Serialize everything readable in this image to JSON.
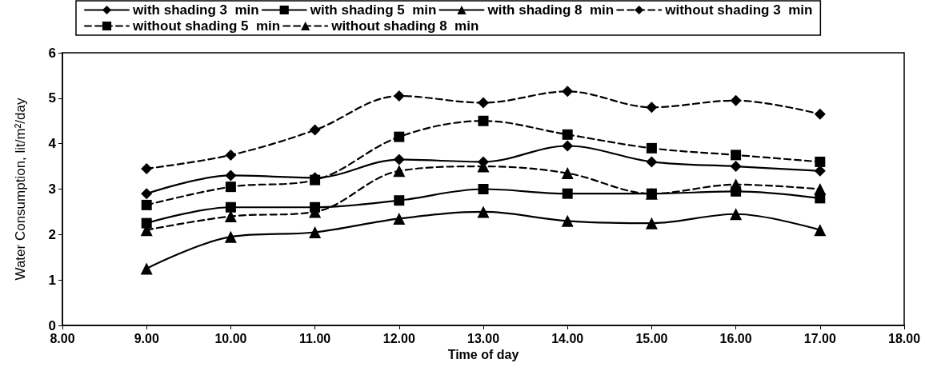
{
  "chart_data": {
    "type": "line",
    "xlabel": "Time of day",
    "ylabel": "Water Consumption, lit/m²/day",
    "x": [
      9,
      10,
      11,
      12,
      13,
      14,
      15,
      16,
      17
    ],
    "xlim": [
      8,
      18
    ],
    "xticks": [
      {
        "value": 8,
        "label": "8.00"
      },
      {
        "value": 9,
        "label": "9.00"
      },
      {
        "value": 10,
        "label": "10.00"
      },
      {
        "value": 11,
        "label": "11.00"
      },
      {
        "value": 12,
        "label": "12.00"
      },
      {
        "value": 13,
        "label": "13.00"
      },
      {
        "value": 14,
        "label": "14.00"
      },
      {
        "value": 15,
        "label": "15.00"
      },
      {
        "value": 16,
        "label": "16.00"
      },
      {
        "value": 17,
        "label": "17.00"
      },
      {
        "value": 18,
        "label": "18.00"
      }
    ],
    "ylim": [
      0,
      6
    ],
    "yticks": [
      0,
      1,
      2,
      3,
      4,
      5,
      6
    ],
    "grid": false,
    "legend": "top",
    "series": [
      {
        "name": "with shading 3  min",
        "color": "#000000",
        "marker": "diamond",
        "line_style": "solid",
        "values": [
          2.9,
          3.3,
          3.25,
          3.65,
          3.6,
          3.95,
          3.6,
          3.5,
          3.4
        ]
      },
      {
        "name": "with shading 5  min",
        "color": "#000000",
        "marker": "square",
        "line_style": "solid",
        "values": [
          2.25,
          2.6,
          2.6,
          2.75,
          3.0,
          2.9,
          2.9,
          2.95,
          2.8
        ]
      },
      {
        "name": "with shading 8  min",
        "color": "#000000",
        "marker": "triangle",
        "line_style": "solid",
        "values": [
          1.25,
          1.95,
          2.05,
          2.35,
          2.5,
          2.3,
          2.25,
          2.45,
          2.1
        ]
      },
      {
        "name": "without shading 3  min",
        "color": "#000000",
        "marker": "diamond",
        "line_style": "dashed",
        "values": [
          3.45,
          3.75,
          4.3,
          5.05,
          4.9,
          5.15,
          4.8,
          4.95,
          4.65
        ]
      },
      {
        "name": "without shading 5  min",
        "color": "#000000",
        "marker": "square",
        "line_style": "dashed",
        "values": [
          2.65,
          3.05,
          3.2,
          4.15,
          4.5,
          4.2,
          3.9,
          3.75,
          3.6
        ]
      },
      {
        "name": "without shading 8  min",
        "color": "#000000",
        "marker": "triangle",
        "line_style": "dashed",
        "values": [
          2.1,
          2.4,
          2.5,
          3.4,
          3.5,
          3.35,
          2.9,
          3.1,
          3.0
        ]
      }
    ]
  }
}
